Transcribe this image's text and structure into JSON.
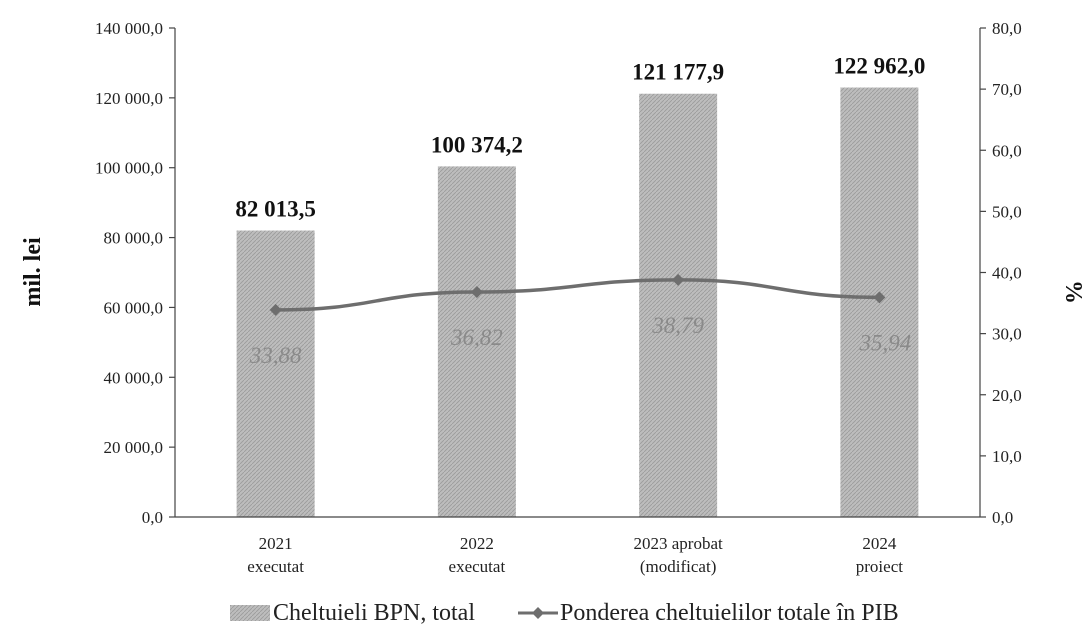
{
  "chart_data": {
    "type": "bar",
    "categories": [
      [
        "2021",
        "executat"
      ],
      [
        "2022",
        "executat"
      ],
      [
        "2023 aprobat",
        "(modificat)"
      ],
      [
        "2024",
        "proiect"
      ]
    ],
    "series": [
      {
        "name": "Cheltuieli BPN, total",
        "type": "bar",
        "axis": "left",
        "values": [
          82013.5,
          100374.2,
          121177.9,
          122962.0
        ],
        "labels": [
          "82 013,5",
          "100 374,2",
          "121 177,9",
          "122 962,0"
        ],
        "color": "#b3b3b3"
      },
      {
        "name": "Ponderea cheltuielilor totale în PIB",
        "type": "line",
        "axis": "right",
        "values": [
          33.88,
          36.82,
          38.79,
          35.94
        ],
        "labels": [
          "33,88",
          "36,82",
          "38,79",
          "35,94"
        ],
        "color": "#6e6e6e"
      }
    ],
    "ylabel": "mil. lei",
    "ylabel_right": "%",
    "ylim": [
      0,
      140000
    ],
    "ylim_right": [
      0,
      80
    ],
    "yticks": [
      "0,0",
      "20 000,0",
      "40 000,0",
      "60 000,0",
      "80 000,0",
      "100 000,0",
      "120 000,0",
      "140 000,0"
    ],
    "yticks_right": [
      "0,0",
      "10,0",
      "20,0",
      "30,0",
      "40,0",
      "50,0",
      "60,0",
      "70,0",
      "80,0"
    ],
    "grid": false,
    "legend_position": "bottom"
  }
}
